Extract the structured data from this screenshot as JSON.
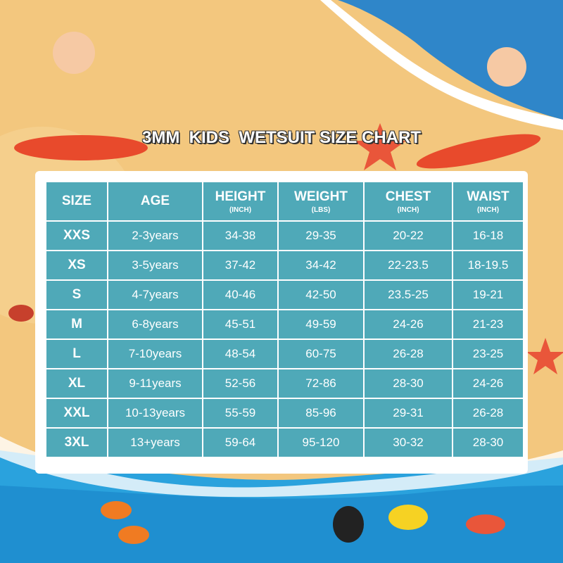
{
  "header": {
    "title": "3MM  KIDS  WETSUIT SIZE CHART"
  },
  "table": {
    "columns": [
      {
        "label": "SIZE"
      },
      {
        "label": "AGE"
      },
      {
        "label": "HEIGHT",
        "unit": "(INCH)"
      },
      {
        "label": "WEIGHT",
        "unit": "(LBS)"
      },
      {
        "label": "CHEST",
        "unit": "(INCH)"
      },
      {
        "label": "WAIST",
        "unit": "(INCH)"
      }
    ],
    "rows": [
      [
        "XXS",
        "2-3years",
        "34-38",
        "29-35",
        "20-22",
        "16-18"
      ],
      [
        "XS",
        "3-5years",
        "37-42",
        "34-42",
        "22-23.5",
        "18-19.5"
      ],
      [
        "S",
        "4-7years",
        "40-46",
        "42-50",
        "23.5-25",
        "19-21"
      ],
      [
        "M",
        "6-8years",
        "45-51",
        "49-59",
        "24-26",
        "21-23"
      ],
      [
        "L",
        "7-10years",
        "48-54",
        "60-75",
        "26-28",
        "23-25"
      ],
      [
        "XL",
        "9-11years",
        "52-56",
        "72-86",
        "28-30",
        "24-26"
      ],
      [
        "XXL",
        "10-13years",
        "55-59",
        "85-96",
        "29-31",
        "26-28"
      ],
      [
        "3XL",
        "13+years",
        "59-64",
        "95-120",
        "30-32",
        "28-30"
      ]
    ]
  }
}
